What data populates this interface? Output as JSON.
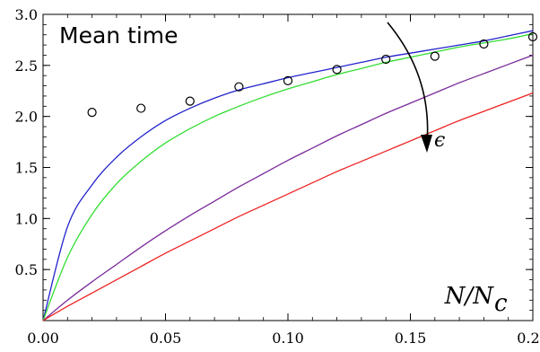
{
  "chart_data": {
    "type": "line",
    "title": "Mean time",
    "xlabel": "N/N_c",
    "xlabel_main": "N/N",
    "xlabel_sub": "c",
    "ylabel": "",
    "xlim": [
      0,
      0.2
    ],
    "ylim": [
      0,
      3
    ],
    "x_ticks": [
      0,
      0.05,
      0.1,
      0.15,
      0.2
    ],
    "x_tick_labels": [
      "0.00",
      "0.05",
      "0.10",
      "0.15",
      "0.20"
    ],
    "y_ticks": [
      0.5,
      1.0,
      1.5,
      2.0,
      2.5,
      3.0
    ],
    "y_tick_labels": [
      "0.5",
      "1.0",
      "1.5",
      "2.0",
      "2.5",
      "3.0"
    ],
    "grid": false,
    "annotation": {
      "text": "ϵ"
    },
    "series": [
      {
        "color": "#2222cc",
        "x": [
          0,
          0.01,
          0.02,
          0.03,
          0.04,
          0.05,
          0.06,
          0.07,
          0.08,
          0.09,
          0.1,
          0.11,
          0.12,
          0.13,
          0.14,
          0.15,
          0.16,
          0.17,
          0.18,
          0.19,
          0.2
        ],
        "y": [
          0,
          0.92,
          1.33,
          1.6,
          1.8,
          1.96,
          2.08,
          2.18,
          2.26,
          2.32,
          2.38,
          2.43,
          2.48,
          2.53,
          2.58,
          2.62,
          2.66,
          2.7,
          2.74,
          2.79,
          2.84
        ]
      },
      {
        "color": "#33dd33",
        "x": [
          0,
          0.01,
          0.02,
          0.03,
          0.04,
          0.05,
          0.06,
          0.07,
          0.08,
          0.09,
          0.1,
          0.11,
          0.12,
          0.13,
          0.14,
          0.15,
          0.16,
          0.17,
          0.18,
          0.19,
          0.2
        ],
        "y": [
          0,
          0.62,
          1.04,
          1.34,
          1.56,
          1.74,
          1.88,
          2.0,
          2.1,
          2.19,
          2.27,
          2.34,
          2.41,
          2.47,
          2.53,
          2.58,
          2.63,
          2.68,
          2.72,
          2.76,
          2.81
        ]
      },
      {
        "color": "#7a2a9a",
        "x": [
          0,
          0.01,
          0.02,
          0.03,
          0.04,
          0.05,
          0.06,
          0.07,
          0.08,
          0.09,
          0.1,
          0.11,
          0.12,
          0.13,
          0.14,
          0.15,
          0.16,
          0.17,
          0.18,
          0.19,
          0.2
        ],
        "y": [
          0,
          0.2,
          0.38,
          0.55,
          0.72,
          0.88,
          1.03,
          1.17,
          1.31,
          1.44,
          1.57,
          1.69,
          1.81,
          1.92,
          2.03,
          2.13,
          2.23,
          2.33,
          2.42,
          2.51,
          2.6
        ]
      },
      {
        "color": "#ee2222",
        "x": [
          0,
          0.01,
          0.02,
          0.03,
          0.04,
          0.05,
          0.06,
          0.07,
          0.08,
          0.09,
          0.1,
          0.11,
          0.12,
          0.13,
          0.14,
          0.15,
          0.16,
          0.17,
          0.18,
          0.19,
          0.2
        ],
        "y": [
          0,
          0.14,
          0.27,
          0.4,
          0.53,
          0.66,
          0.78,
          0.9,
          1.02,
          1.13,
          1.24,
          1.35,
          1.46,
          1.56,
          1.66,
          1.76,
          1.86,
          1.96,
          2.05,
          2.14,
          2.23
        ]
      }
    ],
    "scatter": {
      "marker": "open-circle",
      "x": [
        0.02,
        0.04,
        0.06,
        0.08,
        0.1,
        0.12,
        0.14,
        0.16,
        0.18,
        0.2
      ],
      "y": [
        2.04,
        2.08,
        2.15,
        2.29,
        2.35,
        2.46,
        2.56,
        2.59,
        2.71,
        2.78
      ]
    }
  }
}
